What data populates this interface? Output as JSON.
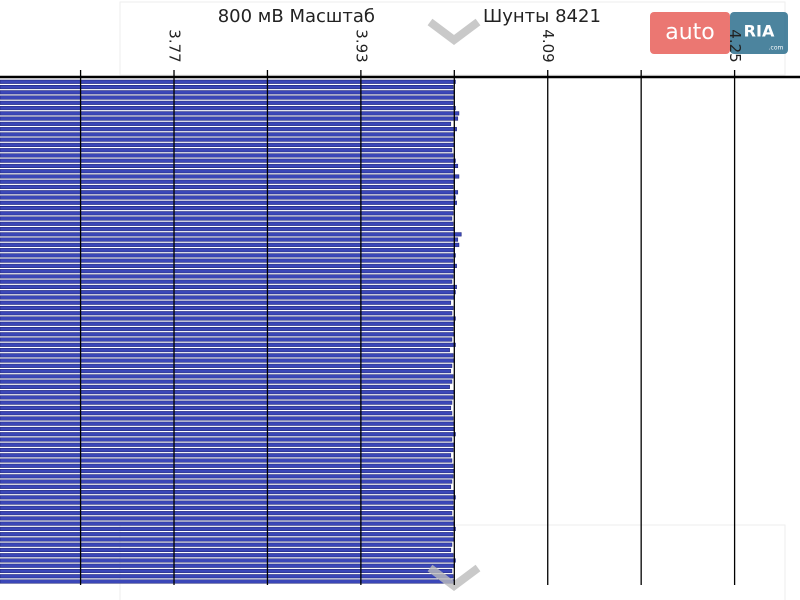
{
  "chart_data": {
    "type": "barh",
    "title": "800 мВ Масштаб",
    "subtitle": "Шунты 8421",
    "xlim": [
      3.621,
      4.306
    ],
    "xticks": [
      3.77,
      3.93,
      4.09,
      4.25
    ],
    "minor_xticks": [
      3.69,
      3.85,
      4.01,
      4.17
    ],
    "color": "#3b47b8",
    "grid": true,
    "values": [
      4.011,
      4.009,
      4.01,
      4.01,
      4.009,
      4.011,
      4.014,
      4.013,
      4.007,
      4.012,
      4.01,
      4.009,
      4.01,
      4.008,
      4.009,
      4.011,
      4.013,
      4.009,
      4.014,
      4.01,
      4.009,
      4.013,
      4.011,
      4.012,
      4.01,
      4.009,
      4.008,
      4.009,
      4.01,
      4.016,
      4.013,
      4.014,
      4.01,
      4.011,
      4.009,
      4.012,
      4.01,
      4.009,
      4.008,
      4.012,
      4.011,
      4.01,
      4.007,
      4.009,
      4.008,
      4.011,
      4.01,
      4.009,
      4.01,
      4.008,
      4.011,
      4.006,
      4.009,
      4.01,
      4.008,
      4.007,
      4.009,
      4.008,
      4.006,
      4.01,
      4.009,
      4.008,
      4.007,
      4.008,
      4.009,
      4.01,
      4.01,
      4.011,
      4.008,
      4.01,
      4.009,
      4.007,
      4.008,
      4.009,
      4.01,
      4.009,
      4.008,
      4.007,
      4.01,
      4.011,
      4.009,
      4.01,
      4.008,
      4.009,
      4.01,
      4.011,
      4.009,
      4.01,
      4.008,
      4.007,
      4.009,
      4.011,
      4.01,
      4.008,
      4.009,
      4.01
    ]
  },
  "watermark": {
    "brand": "auto",
    "brand_accent": "RIA",
    "domain": ".com"
  }
}
